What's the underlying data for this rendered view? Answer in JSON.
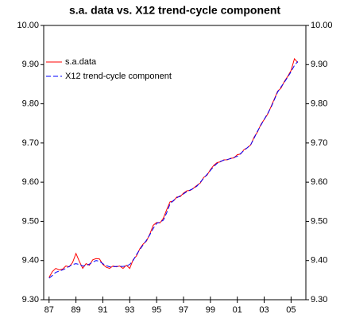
{
  "chart_data": {
    "type": "line",
    "title": "s.a. data vs. X12 trend-cycle component",
    "x": [
      1987,
      1987.25,
      1987.5,
      1987.75,
      1988,
      1988.25,
      1988.5,
      1988.75,
      1989,
      1989.25,
      1989.5,
      1989.75,
      1990,
      1990.25,
      1990.5,
      1990.75,
      1991,
      1991.25,
      1991.5,
      1991.75,
      1992,
      1992.25,
      1992.5,
      1992.75,
      1993,
      1993.25,
      1993.5,
      1993.75,
      1994,
      1994.25,
      1994.5,
      1994.75,
      1995,
      1995.25,
      1995.5,
      1995.75,
      1996,
      1996.25,
      1996.5,
      1996.75,
      1997,
      1997.25,
      1997.5,
      1997.75,
      1998,
      1998.25,
      1998.5,
      1998.75,
      1999,
      1999.25,
      1999.5,
      1999.75,
      2000,
      2000.25,
      2000.5,
      2000.75,
      2001,
      2001.25,
      2001.5,
      2001.75,
      2002,
      2002.25,
      2002.5,
      2002.75,
      2003,
      2003.25,
      2003.5,
      2003.75,
      2004,
      2004.25,
      2004.5,
      2004.75,
      2005,
      2005.25,
      2005.5
    ],
    "series": [
      {
        "name": "s.a.data",
        "color": "#ff0000",
        "dashed": false,
        "values": [
          9.357,
          9.372,
          9.38,
          9.376,
          9.378,
          9.386,
          9.384,
          9.395,
          9.418,
          9.398,
          9.38,
          9.392,
          9.388,
          9.402,
          9.405,
          9.404,
          9.39,
          9.383,
          9.38,
          9.386,
          9.384,
          9.386,
          9.38,
          9.388,
          9.38,
          9.402,
          9.412,
          9.43,
          9.442,
          9.45,
          9.468,
          9.49,
          9.497,
          9.496,
          9.508,
          9.53,
          9.55,
          9.552,
          9.562,
          9.563,
          9.572,
          9.578,
          9.579,
          9.585,
          9.592,
          9.598,
          9.612,
          9.618,
          9.632,
          9.643,
          9.65,
          9.652,
          9.657,
          9.657,
          9.661,
          9.662,
          9.67,
          9.672,
          9.683,
          9.688,
          9.695,
          9.715,
          9.728,
          9.747,
          9.76,
          9.773,
          9.792,
          9.812,
          9.832,
          9.84,
          9.857,
          9.87,
          9.885,
          9.915,
          9.905
        ]
      },
      {
        "name": "X12 trend-cycle component",
        "color": "#0000ff",
        "dashed": true,
        "values": [
          9.355,
          9.362,
          9.37,
          9.373,
          9.376,
          9.38,
          9.385,
          9.39,
          9.392,
          9.39,
          9.386,
          9.387,
          9.391,
          9.396,
          9.4,
          9.398,
          9.392,
          9.387,
          9.384,
          9.384,
          9.385,
          9.385,
          9.385,
          9.386,
          9.39,
          9.4,
          9.415,
          9.428,
          9.44,
          9.452,
          9.466,
          9.482,
          9.495,
          9.498,
          9.503,
          9.522,
          9.545,
          9.553,
          9.56,
          9.565,
          9.57,
          9.576,
          9.58,
          9.584,
          9.59,
          9.6,
          9.61,
          9.62,
          9.63,
          9.64,
          9.648,
          9.653,
          9.656,
          9.658,
          9.66,
          9.663,
          9.666,
          9.673,
          9.681,
          9.688,
          9.696,
          9.712,
          9.73,
          9.745,
          9.76,
          9.775,
          9.79,
          9.81,
          9.83,
          9.843,
          9.855,
          9.868,
          9.882,
          9.898,
          9.908
        ]
      }
    ],
    "xlim": [
      1986.6,
      2006.1
    ],
    "xticks": [
      {
        "value": 1987,
        "label": "87"
      },
      {
        "value": 1989,
        "label": "89"
      },
      {
        "value": 1991,
        "label": "91"
      },
      {
        "value": 1993,
        "label": "93"
      },
      {
        "value": 1995,
        "label": "95"
      },
      {
        "value": 1997,
        "label": "97"
      },
      {
        "value": 1999,
        "label": "99"
      },
      {
        "value": 2001,
        "label": "01"
      },
      {
        "value": 2003,
        "label": "03"
      },
      {
        "value": 2005,
        "label": "05"
      }
    ],
    "ylim": [
      9.3,
      10
    ],
    "yticks": [
      {
        "value": 9.3,
        "label": "9.30"
      },
      {
        "value": 9.4,
        "label": "9.40"
      },
      {
        "value": 9.5,
        "label": "9.50"
      },
      {
        "value": 9.6,
        "label": "9.60"
      },
      {
        "value": 9.7,
        "label": "9.70"
      },
      {
        "value": 9.8,
        "label": "9.80"
      },
      {
        "value": 9.9,
        "label": "9.90"
      },
      {
        "value": 10,
        "label": "10.00"
      }
    ],
    "mirror_y_axis": true,
    "legend": "upper left"
  }
}
